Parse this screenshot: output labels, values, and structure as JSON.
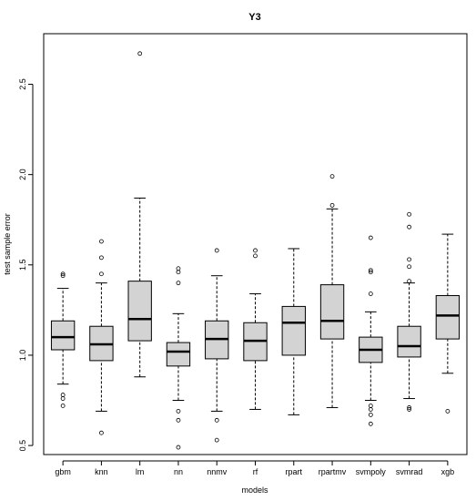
{
  "chart_data": {
    "type": "boxplot",
    "title": "Y3",
    "xlabel": "models",
    "ylabel": "test sample error",
    "ylim": [
      0.45,
      2.78
    ],
    "yticks": [
      0.5,
      1.0,
      1.5,
      2.0,
      2.5
    ],
    "ytick_labels": [
      "0.5",
      "1.0",
      "1.5",
      "2.0",
      "2.5"
    ],
    "grid": false,
    "box_fill": "#d3d3d3",
    "categories": [
      "gbm",
      "knn",
      "lm",
      "nn",
      "nnmv",
      "rf",
      "rpart",
      "rpartmv",
      "svmpoly",
      "svmrad",
      "xgb"
    ],
    "boxes": [
      {
        "name": "gbm",
        "whisker_low": 0.84,
        "q1": 1.03,
        "median": 1.1,
        "q3": 1.19,
        "whisker_high": 1.37,
        "outliers": [
          0.72,
          0.76,
          0.78,
          1.44,
          1.45
        ]
      },
      {
        "name": "knn",
        "whisker_low": 0.69,
        "q1": 0.97,
        "median": 1.06,
        "q3": 1.16,
        "whisker_high": 1.4,
        "outliers": [
          0.57,
          1.45,
          1.54,
          1.63
        ]
      },
      {
        "name": "lm",
        "whisker_low": 0.88,
        "q1": 1.08,
        "median": 1.2,
        "q3": 1.41,
        "whisker_high": 1.87,
        "outliers": [
          2.67
        ]
      },
      {
        "name": "nn",
        "whisker_low": 0.75,
        "q1": 0.94,
        "median": 1.02,
        "q3": 1.07,
        "whisker_high": 1.23,
        "outliers": [
          0.49,
          0.64,
          0.69,
          1.4,
          1.46,
          1.48
        ]
      },
      {
        "name": "nnmv",
        "whisker_low": 0.69,
        "q1": 0.98,
        "median": 1.09,
        "q3": 1.19,
        "whisker_high": 1.44,
        "outliers": [
          0.53,
          0.64,
          1.58
        ]
      },
      {
        "name": "rf",
        "whisker_low": 0.7,
        "q1": 0.97,
        "median": 1.08,
        "q3": 1.18,
        "whisker_high": 1.34,
        "outliers": [
          1.55,
          1.58
        ]
      },
      {
        "name": "rpart",
        "whisker_low": 0.67,
        "q1": 1.0,
        "median": 1.18,
        "q3": 1.27,
        "whisker_high": 1.59,
        "outliers": []
      },
      {
        "name": "rpartmv",
        "whisker_low": 0.71,
        "q1": 1.09,
        "median": 1.19,
        "q3": 1.39,
        "whisker_high": 1.81,
        "outliers": [
          1.83,
          1.99
        ]
      },
      {
        "name": "svmpoly",
        "whisker_low": 0.75,
        "q1": 0.96,
        "median": 1.03,
        "q3": 1.1,
        "whisker_high": 1.24,
        "outliers": [
          0.62,
          0.67,
          0.7,
          0.72,
          1.34,
          1.46,
          1.47,
          1.65
        ]
      },
      {
        "name": "svmrad",
        "whisker_low": 0.76,
        "q1": 0.99,
        "median": 1.05,
        "q3": 1.16,
        "whisker_high": 1.4,
        "outliers": [
          0.7,
          0.71,
          1.41,
          1.49,
          1.53,
          1.71,
          1.78
        ]
      },
      {
        "name": "xgb",
        "whisker_low": 0.9,
        "q1": 1.09,
        "median": 1.22,
        "q3": 1.33,
        "whisker_high": 1.67,
        "outliers": [
          0.69
        ]
      }
    ]
  }
}
